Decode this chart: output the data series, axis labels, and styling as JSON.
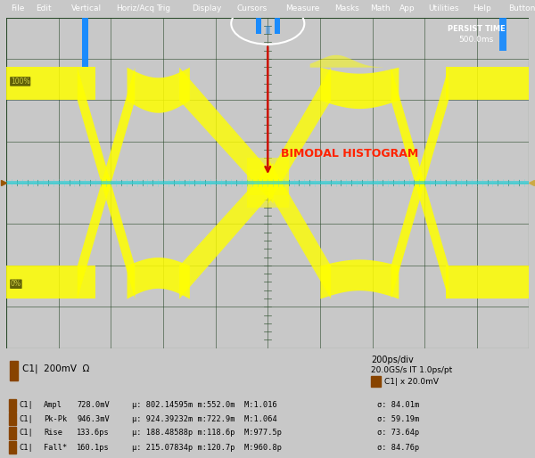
{
  "outer_bg": "#c8c8c8",
  "menu_bg": "#1a1a1a",
  "menu_items": [
    "File",
    "Edit",
    "Vertical",
    "Horiz/Acq",
    "Trig",
    "Display",
    "Cursors",
    "Measure",
    "Masks",
    "Math",
    "App",
    "Utilities",
    "Help",
    "Buttons"
  ],
  "screen_bg": "#0d0d0d",
  "grid_color": "#1e3a1e",
  "annotation_text": "BIMODAL HISTOGRAM",
  "annotation_color": "#ff2200",
  "persist_label": "PERSIST TIME",
  "persist_value": "500.0ms",
  "channel_label": "C1|  200mV  Ω",
  "timebase": "200ps/div",
  "sample_rate": "20.0GS/s IT 1.0ps/pt",
  "ch_scale": "C1| x 20.0mV",
  "label_100": "100%",
  "label_0": "0%",
  "measurements": [
    [
      "C1",
      "Ampl",
      "728.0mV",
      "μ: 802.14595m m:552.0m  M:1.016",
      "σ: 84.01m"
    ],
    [
      "C1",
      "Pk-Pk",
      "946.3mV",
      "μ: 924.39232m m:722.9m  M:1.064",
      "σ: 59.19m"
    ],
    [
      "C1",
      "Rise",
      "133.6ps",
      "μ: 188.48588p m:118.6p  M:977.5p",
      "σ: 73.64p"
    ],
    [
      "C1",
      "Fall*",
      "160.1ps",
      "μ: 215.07834p m:120.7p  M:960.8p",
      "σ: 84.76p"
    ]
  ]
}
